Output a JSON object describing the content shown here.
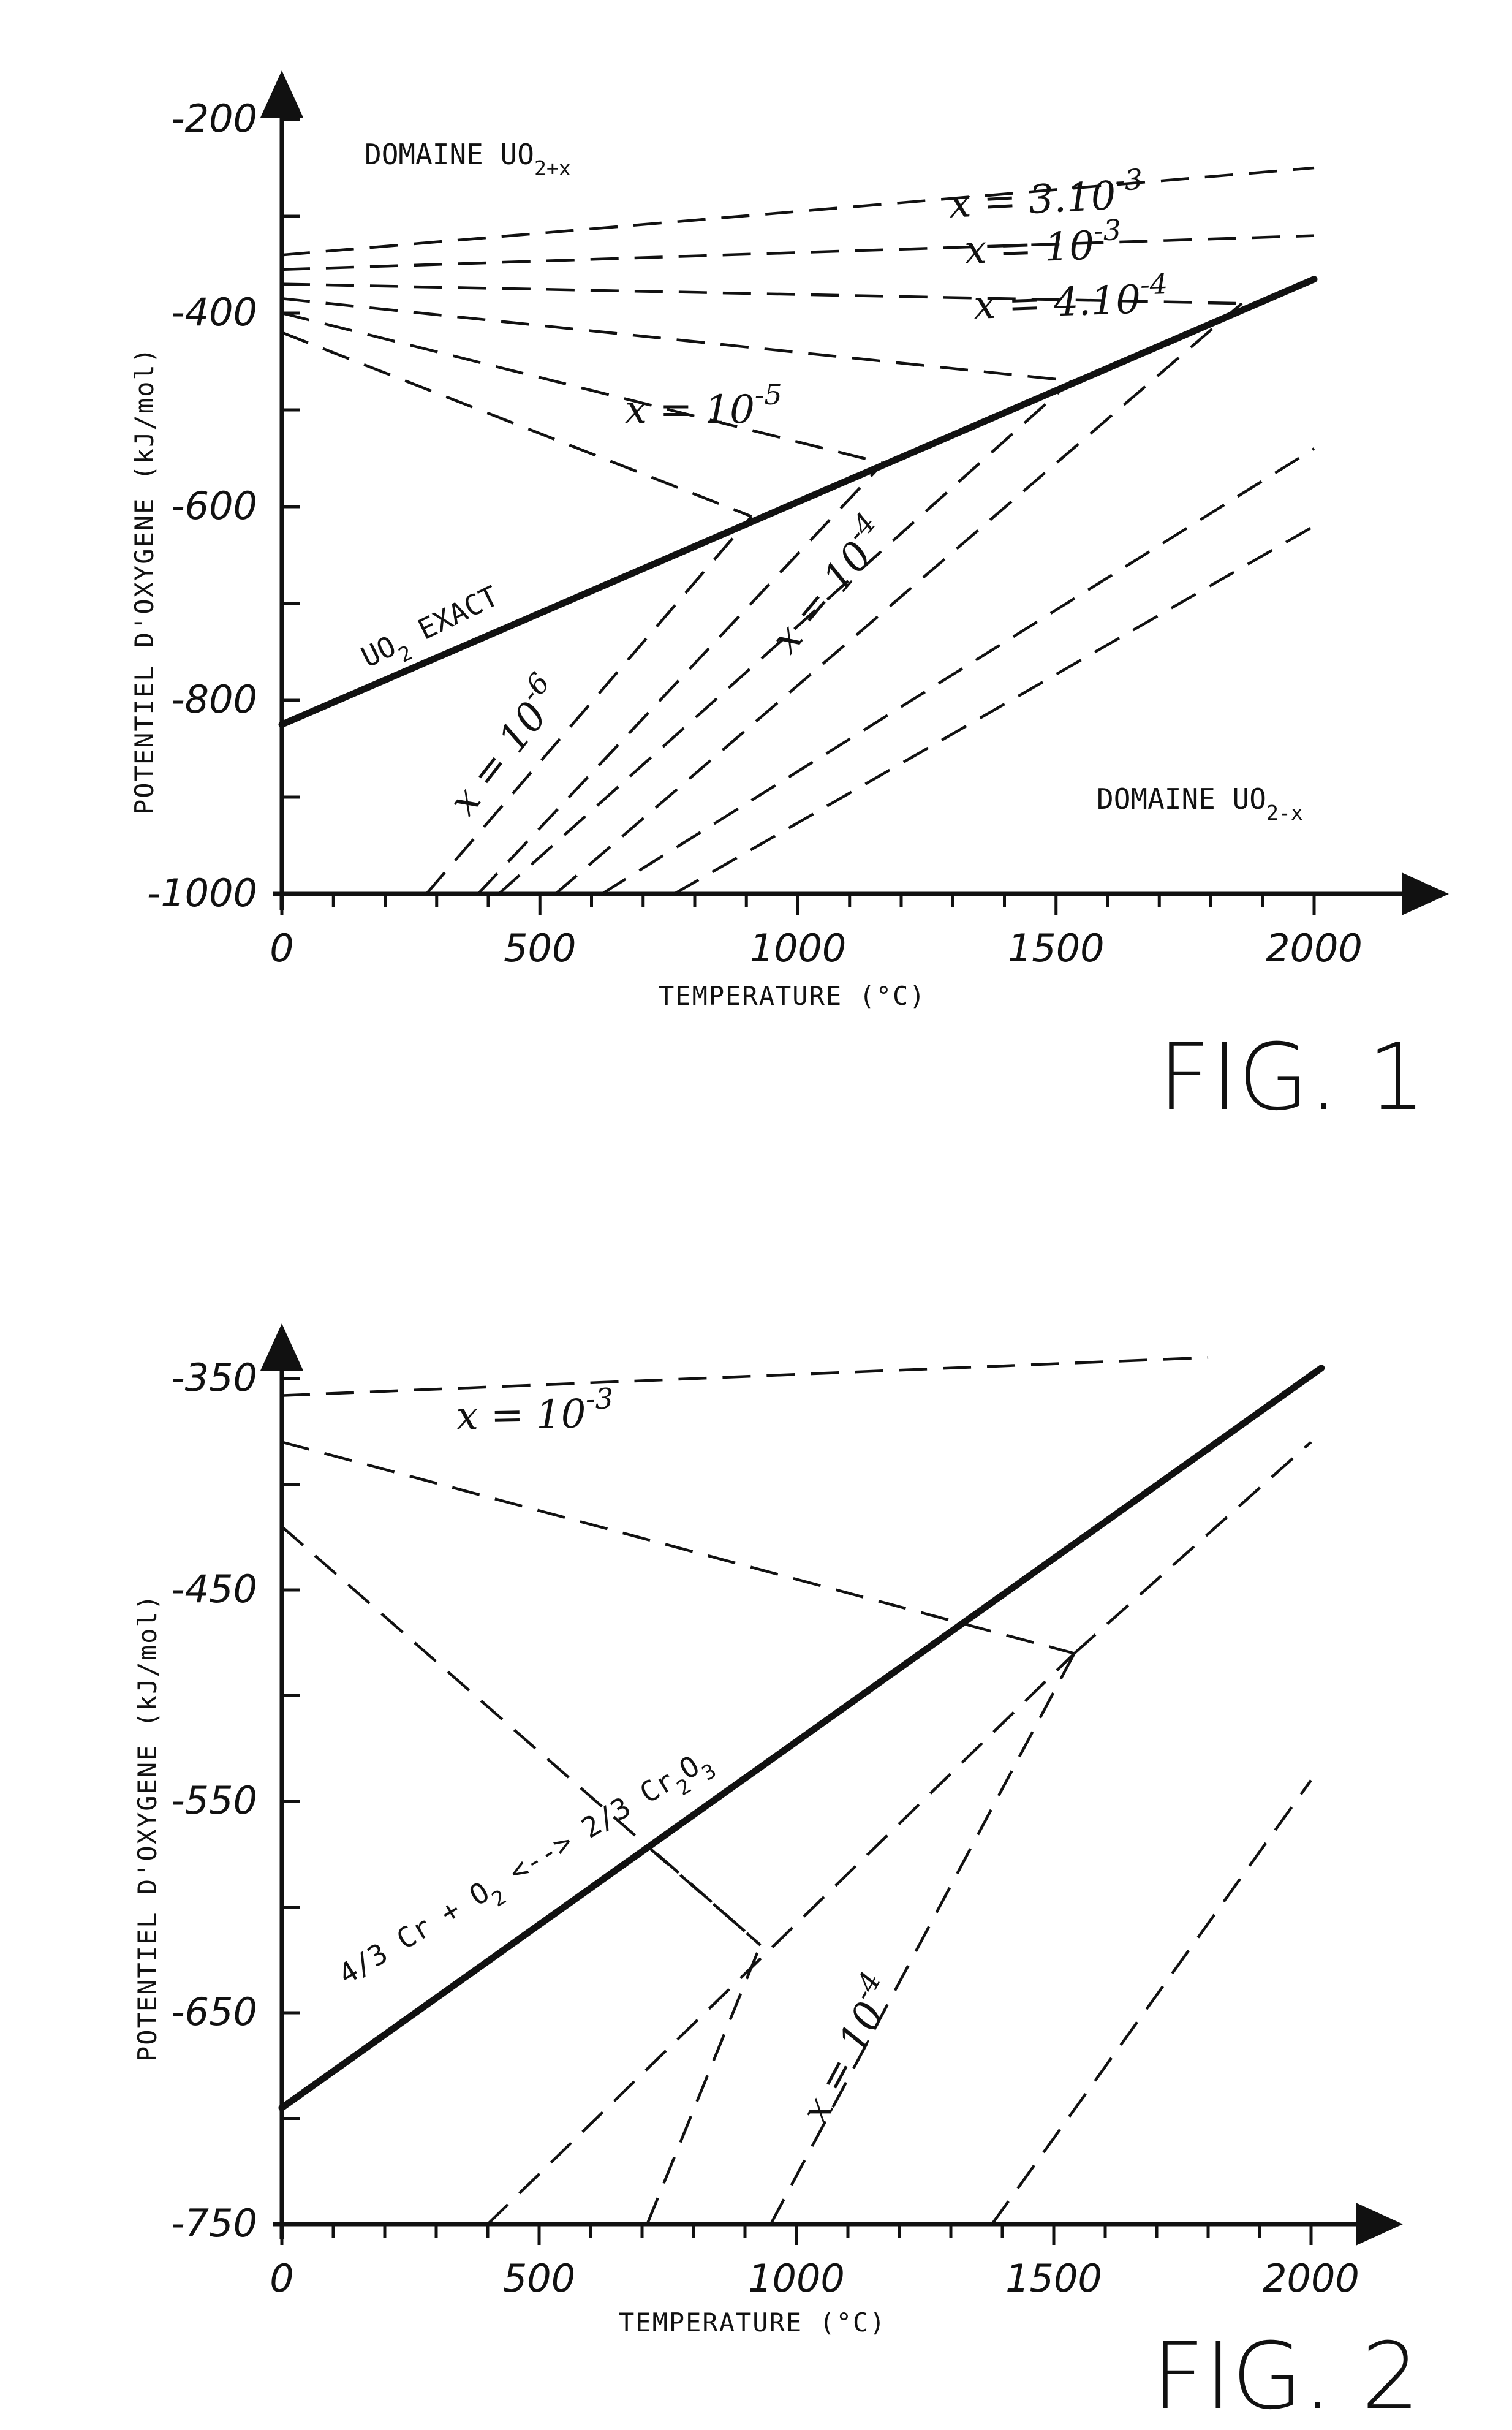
{
  "chart_data": [
    {
      "type": "line",
      "figure_label": "FIG. 1",
      "xlabel": "TEMPERATURE (°C)",
      "ylabel": "POTENTIEL D'OXYGENE (kJ/mol)",
      "xlim": [
        0,
        2150
      ],
      "ylim": [
        -1000,
        -180
      ],
      "x_ticks": [
        "0",
        "500",
        "1000",
        "1500",
        "2000"
      ],
      "y_ticks": [
        "-200",
        "-400",
        "-600",
        "-800",
        "-1000"
      ],
      "region_labels": [
        {
          "text": "DOMAINE UO",
          "sub": "2+x"
        },
        {
          "text": "DOMAINE UO",
          "sub": "2-x"
        }
      ],
      "series": [
        {
          "name": "UO2 EXACT",
          "style": "solid",
          "x": [
            0,
            2000
          ],
          "y": [
            -825,
            -365
          ]
        },
        {
          "name": "x = 3.10-3",
          "style": "dashed",
          "x": [
            0,
            2000
          ],
          "y": [
            -340,
            -250
          ]
        },
        {
          "name": "x = 10-3",
          "style": "dashed",
          "x": [
            0,
            2000
          ],
          "y": [
            -355,
            -320
          ]
        },
        {
          "name": "x = 4.10-4",
          "style": "dashed",
          "x": [
            0,
            1860
          ],
          "y": [
            -370,
            -390
          ]
        },
        {
          "name": "x = 10-5",
          "style": "dashed",
          "x": [
            0,
            1530
          ],
          "y": [
            -385,
            -470
          ]
        },
        {
          "name": "",
          "style": "dashed",
          "x": [
            0,
            1165
          ],
          "y": [
            -400,
            -555
          ]
        },
        {
          "name": "",
          "style": "dashed",
          "x": [
            0,
            910
          ],
          "y": [
            -420,
            -610
          ]
        },
        {
          "name": "x = 10-6",
          "style": "dashed",
          "x": [
            280,
            910
          ],
          "y": [
            -1000,
            -610
          ]
        },
        {
          "name": "",
          "style": "dashed",
          "x": [
            380,
            1165
          ],
          "y": [
            -1000,
            -555
          ]
        },
        {
          "name": "x = 10-4",
          "style": "dashed",
          "x": [
            420,
            1530
          ],
          "y": [
            -1000,
            -470
          ]
        },
        {
          "name": "",
          "style": "dashed",
          "x": [
            530,
            1860
          ],
          "y": [
            -1000,
            -390
          ]
        },
        {
          "name": "",
          "style": "dashed",
          "x": [
            620,
            2000
          ],
          "y": [
            -1000,
            -540
          ]
        },
        {
          "name": "",
          "style": "dashed",
          "x": [
            760,
            2000
          ],
          "y": [
            -1000,
            -620
          ]
        }
      ],
      "annotations": [
        {
          "text": "x = 3.10",
          "sup": "-3"
        },
        {
          "text": "x = 10",
          "sup": "-3"
        },
        {
          "text": "x = 4.10",
          "sup": "-4"
        },
        {
          "text": "x = 10",
          "sup": "-5"
        },
        {
          "text": "x = 10",
          "sup": "-4"
        },
        {
          "text": "x = 10",
          "sup": "-6"
        },
        {
          "text": "UO",
          "sub": "2",
          "after": " EXACT"
        }
      ]
    },
    {
      "type": "line",
      "figure_label": "FIG. 2",
      "xlabel": "TEMPERATURE (°C)",
      "ylabel": "POTENTIEL D'OXYGENE (kJ/mol)",
      "xlim": [
        0,
        2150
      ],
      "ylim": [
        -750,
        -290
      ],
      "x_ticks": [
        "0",
        "500",
        "1000",
        "1500",
        "2000"
      ],
      "y_ticks": [
        "-350",
        "-450",
        "-550",
        "-650",
        "-750"
      ],
      "series": [
        {
          "name": "4/3 Cr + O2 <--> 2/3 Cr2O3",
          "style": "solid",
          "x": [
            0,
            2020
          ],
          "y": [
            -695,
            -345
          ]
        },
        {
          "name": "x = 10-3",
          "style": "dashed",
          "x": [
            0,
            1800
          ],
          "y": [
            -358,
            -340
          ]
        },
        {
          "name": "",
          "style": "dashed",
          "x": [
            0,
            1540
          ],
          "y": [
            -380,
            -480
          ]
        },
        {
          "name": "",
          "style": "dashed",
          "x": [
            0,
            930
          ],
          "y": [
            -420,
            -618
          ]
        },
        {
          "name": "",
          "style": "dashed",
          "x": [
            400,
            1540
          ],
          "y": [
            -750,
            -480
          ]
        },
        {
          "name": "",
          "style": "dashed",
          "x": [
            710,
            930
          ],
          "y": [
            -750,
            -618
          ]
        },
        {
          "name": "x = 10-4",
          "style": "dashed",
          "x": [
            950,
            1540
          ],
          "y": [
            -750,
            -480
          ]
        },
        {
          "name": "",
          "style": "dashed",
          "x": [
            1540,
            2000
          ],
          "y": [
            -480,
            -380
          ]
        },
        {
          "name": "",
          "style": "dashed",
          "x": [
            1380,
            2000
          ],
          "y": [
            -750,
            -540
          ]
        },
        {
          "name": "",
          "style": "dashed",
          "x": [
            730,
            930
          ],
          "y": [
            -575,
            -618
          ]
        }
      ],
      "annotations": [
        {
          "text": "x = 10",
          "sup": "-3"
        },
        {
          "text": "x = 10",
          "sup": "-4"
        },
        {
          "text": "4/3 Cr + O",
          "sub": "2",
          "after": " <--> 2/3 Cr",
          "sub2": "2",
          "mid": "O",
          "sub3": "3"
        }
      ]
    }
  ]
}
